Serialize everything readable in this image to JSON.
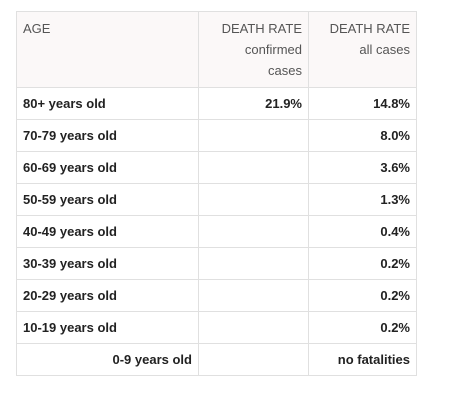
{
  "table": {
    "headers": {
      "age": "AGE",
      "confirmed": [
        "DEATH RATE",
        "confirmed",
        "cases"
      ],
      "all": [
        "DEATH RATE",
        "all cases"
      ]
    },
    "rows": [
      {
        "age": "80+ years old",
        "confirmed": "21.9%",
        "all": "14.8%"
      },
      {
        "age": "70-79 years old",
        "confirmed": "",
        "all": "8.0%"
      },
      {
        "age": "60-69 years old",
        "confirmed": "",
        "all": "3.6%"
      },
      {
        "age": "50-59 years old",
        "confirmed": "",
        "all": "1.3%"
      },
      {
        "age": "40-49 years old",
        "confirmed": "",
        "all": "0.4%"
      },
      {
        "age": "30-39 years old",
        "confirmed": "",
        "all": "0.2%"
      },
      {
        "age": "20-29 years old",
        "confirmed": "",
        "all": "0.2%"
      },
      {
        "age": "10-19 years old",
        "confirmed": "",
        "all": "0.2%"
      },
      {
        "age": "0-9 years old",
        "confirmed": "",
        "all": "no fatalities"
      }
    ]
  }
}
